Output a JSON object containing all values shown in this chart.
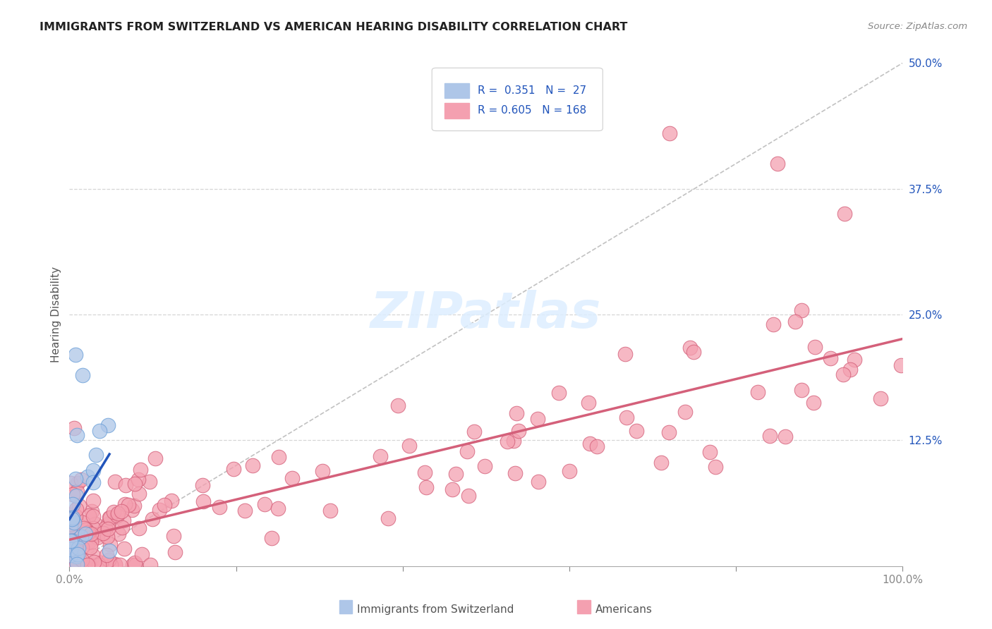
{
  "title": "IMMIGRANTS FROM SWITZERLAND VS AMERICAN HEARING DISABILITY CORRELATION CHART",
  "source": "Source: ZipAtlas.com",
  "ylabel": "Hearing Disability",
  "background_color": "#ffffff",
  "grid_color": "#cccccc",
  "scatter_swiss_color": "#aec6e8",
  "scatter_swiss_edge": "#6a9fd8",
  "scatter_american_color": "#f4a0b0",
  "scatter_american_edge": "#d4607a",
  "line_swiss_color": "#2255bb",
  "line_american_color": "#d4607a",
  "diagonal_color": "#bbbbbb",
  "legend_r1": "R =  0.351",
  "legend_n1": "N =  27",
  "legend_r2": "R = 0.605",
  "legend_n2": "N = 168",
  "legend_text_color": "#2255bb",
  "right_tick_color": "#2255bb",
  "watermark_text": "ZIPatlas",
  "watermark_color": "#ddeeff"
}
